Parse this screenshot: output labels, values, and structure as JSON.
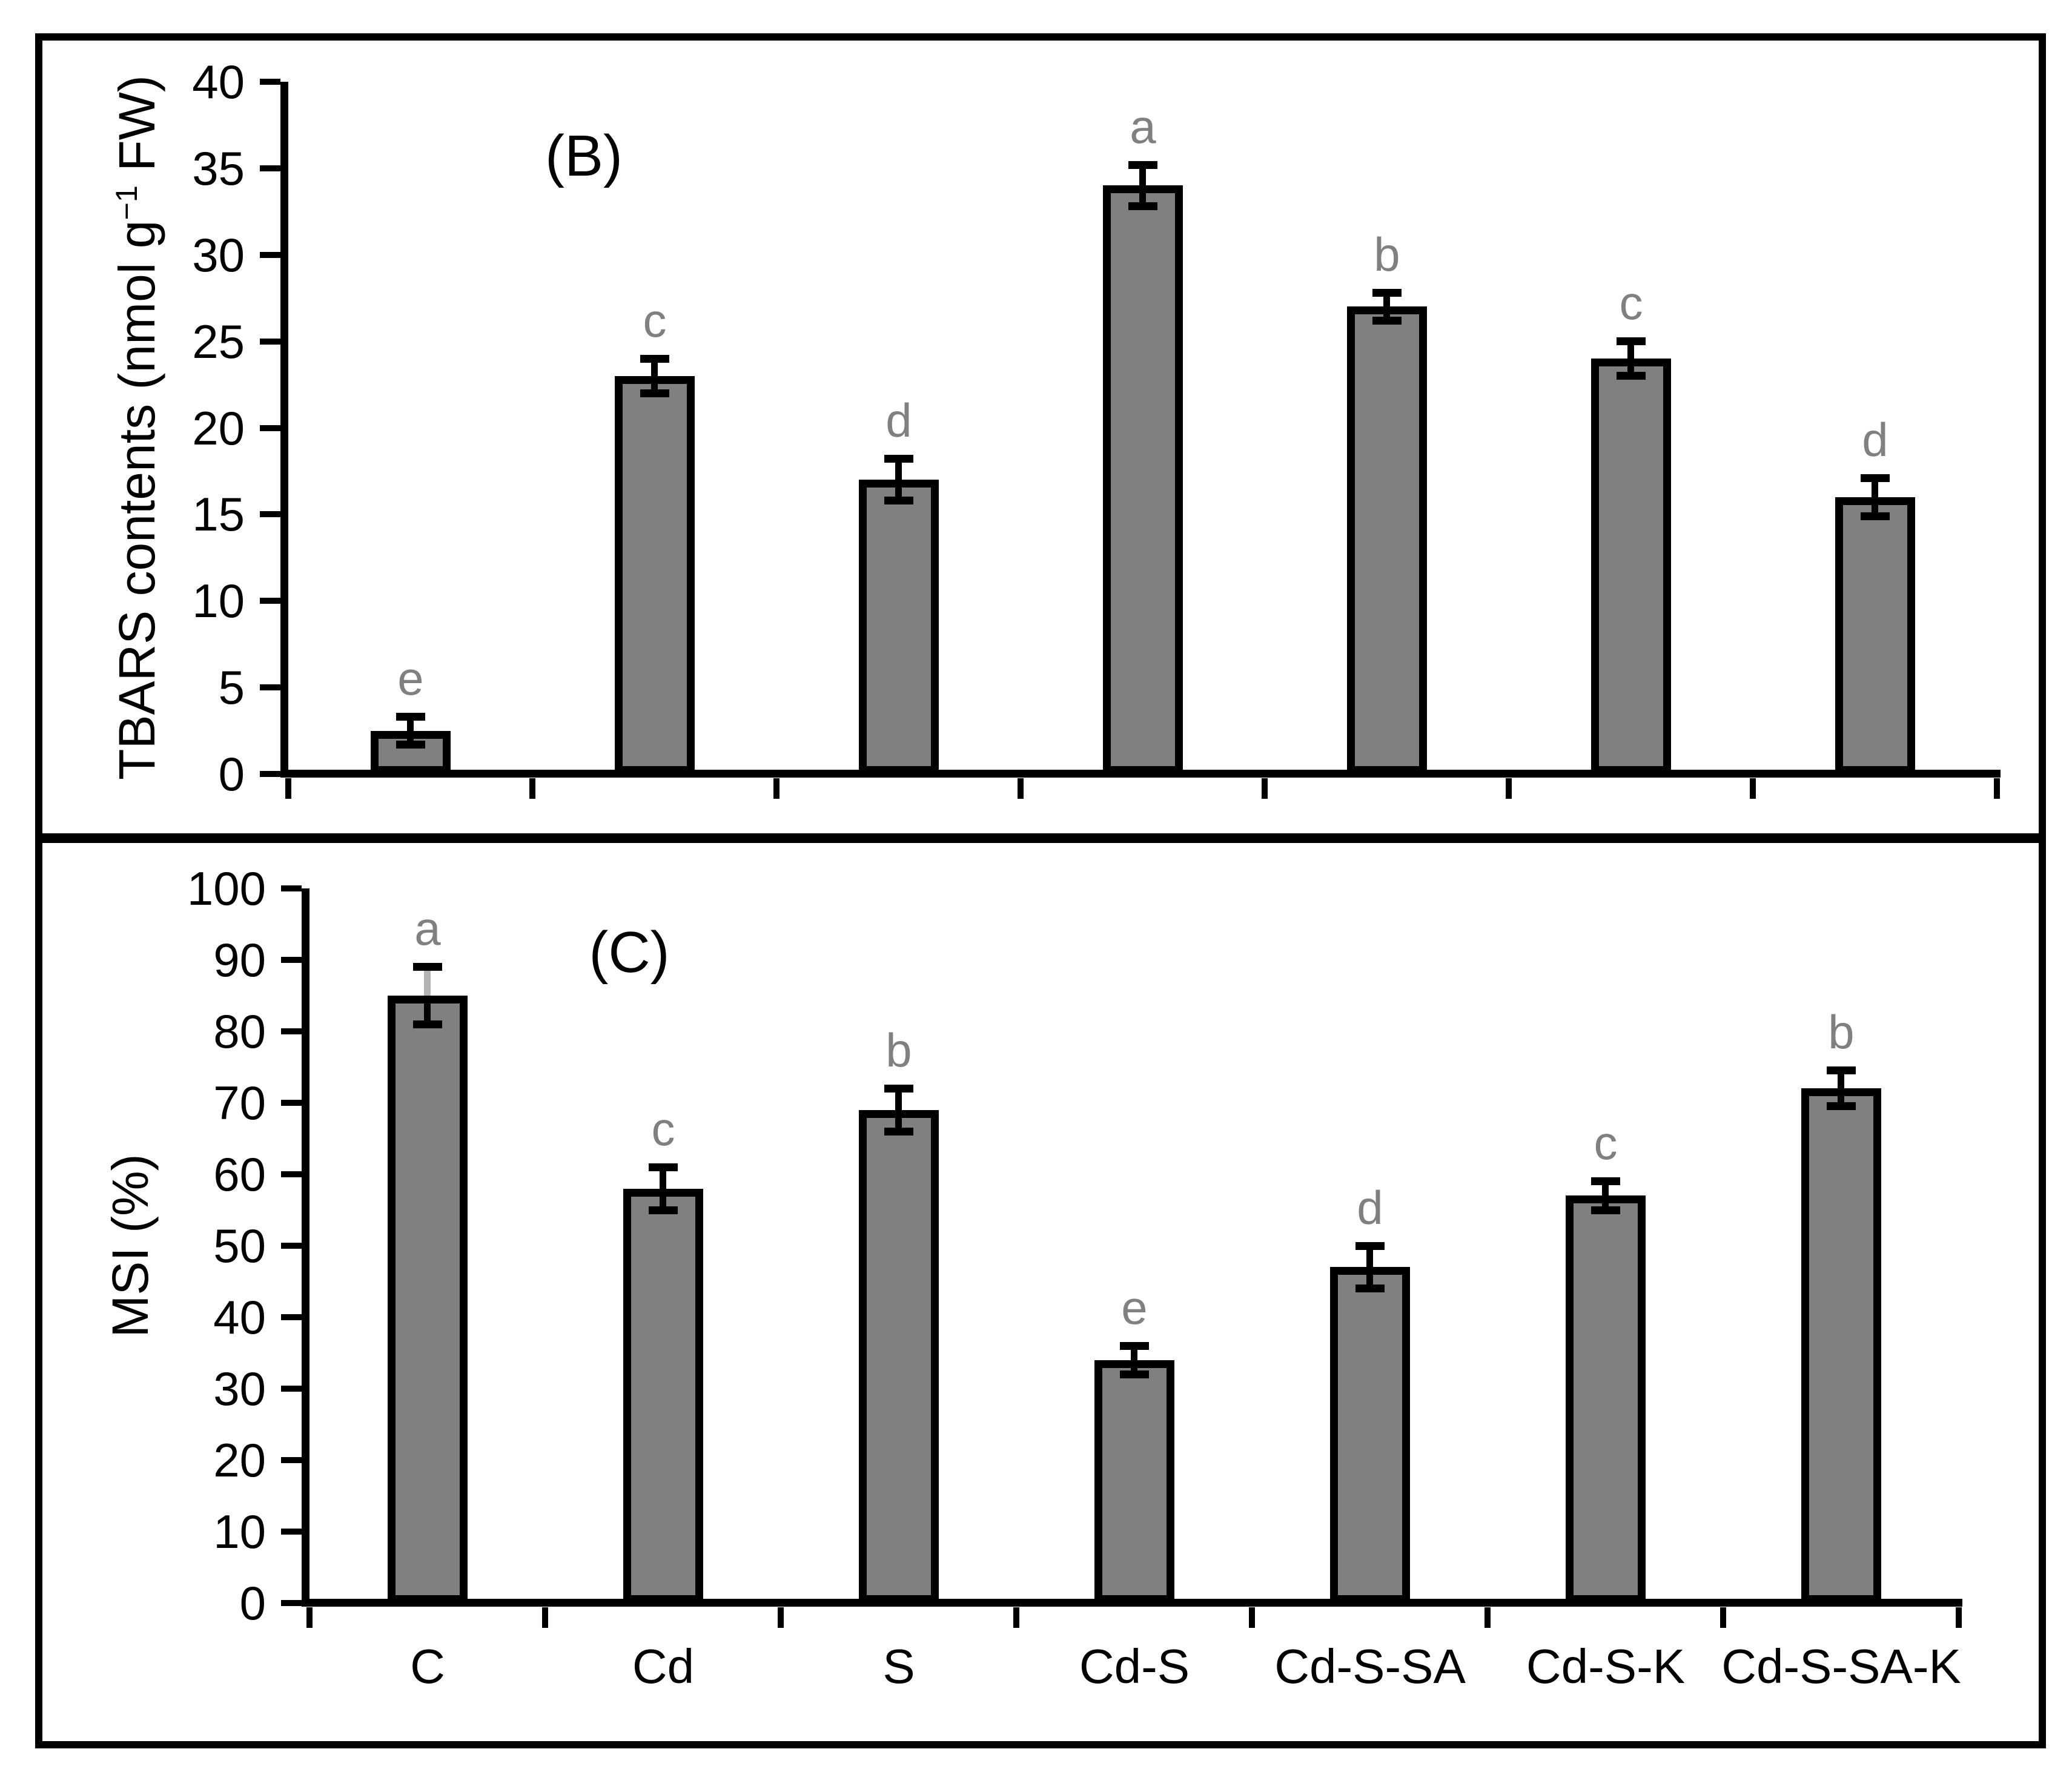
{
  "figure": {
    "background": "#ffffff",
    "border_color": "#000000",
    "bar_fill": "#808080",
    "bar_border": "#000000",
    "letter_color": "#808080",
    "gray_whisker_color": "#b3b3b3"
  },
  "chart_data": [
    {
      "type": "bar",
      "panel_label": "(B)",
      "ylabel": "TBARS contents (nmol g⁻¹ FW)",
      "ylabel_parts": {
        "prefix": "TBARS contents (nmol g",
        "sup": "−1",
        "suffix": " FW)"
      },
      "categories": [
        "C",
        "Cd",
        "S",
        "Cd-S",
        "Cd-S-SA",
        "Cd-S-K",
        "Cd-S-SA-K"
      ],
      "values": [
        2.5,
        23,
        17,
        34,
        27,
        24,
        16
      ],
      "errors": [
        0.8,
        1.0,
        1.2,
        1.2,
        0.8,
        1.0,
        1.1
      ],
      "letters": [
        "e",
        "c",
        "d",
        "a",
        "b",
        "c",
        "d"
      ],
      "ylim": [
        0,
        40
      ],
      "ytick_step": 5,
      "yticks": [
        0,
        5,
        10,
        15,
        20,
        25,
        30,
        35,
        40
      ],
      "legend": "none",
      "grid": false,
      "show_x_labels": false
    },
    {
      "type": "bar",
      "panel_label": "(C)",
      "ylabel": "MSI (%)",
      "categories": [
        "C",
        "Cd",
        "S",
        "Cd-S",
        "Cd-S-SA",
        "Cd-S-K",
        "Cd-S-SA-K"
      ],
      "values": [
        85,
        58,
        69,
        34,
        47,
        57,
        72
      ],
      "errors": [
        4,
        3,
        3,
        2,
        3,
        2,
        2.5
      ],
      "letters": [
        "a",
        "c",
        "b",
        "e",
        "d",
        "c",
        "b"
      ],
      "ylim": [
        0,
        100
      ],
      "ytick_step": 10,
      "yticks": [
        0,
        10,
        20,
        30,
        40,
        50,
        60,
        70,
        80,
        90,
        100
      ],
      "legend": "none",
      "grid": false,
      "show_x_labels": true,
      "gray_upper_whisker_index": 0
    }
  ]
}
